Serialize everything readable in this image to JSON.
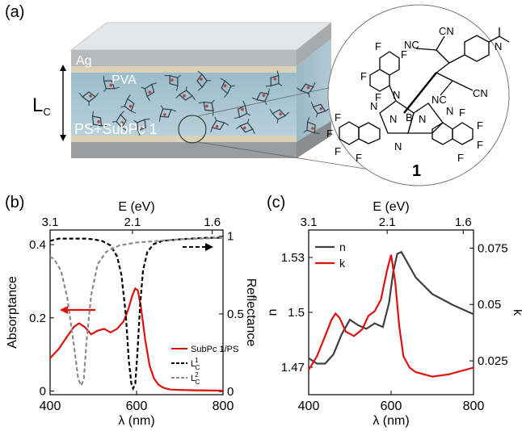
{
  "panel_a": {
    "label": "(a)",
    "layers": {
      "top": "Ag",
      "middle": "PVA",
      "cavity": "PS+SubPc 1"
    },
    "cavity_length": "L",
    "cavity_length_sub": "C",
    "molecule_label": "1",
    "atoms": {
      "F": "F",
      "N": "N",
      "B": "B",
      "CN": "CN",
      "NC": "NC"
    }
  },
  "panel_b": {
    "label": "(b)"
  },
  "panel_c": {
    "label": "(c)"
  },
  "chart_data": [
    {
      "type": "line",
      "panel": "(b)",
      "xlabel": "λ (nm)",
      "x2label": "E (eV)",
      "ylabel": "Absorptance",
      "y2label": "Reflectance",
      "xlim": [
        400,
        800
      ],
      "ylim": [
        -0.01,
        0.44
      ],
      "y2lim": [
        -0.02,
        1.04
      ],
      "xticks": [
        "400",
        "600",
        "800"
      ],
      "x2ticks": [
        "3.1",
        "2.1",
        "1.6"
      ],
      "yticks": [
        "0",
        "0.2",
        "0.4"
      ],
      "y2ticks": [
        "0",
        "0.5",
        "1"
      ],
      "legend": [
        "SubPc 1/PS",
        "L",
        "L"
      ],
      "legend_sub": [
        "",
        "C",
        "C"
      ],
      "legend_sup": [
        "",
        "1",
        "2"
      ],
      "colors": {
        "absorptance": "#e01010",
        "lc1": "#000000",
        "lc2": "#8c8c8c"
      },
      "series": [
        {
          "name": "SubPc 1/PS",
          "axis": "left",
          "x": [
            400,
            420,
            440,
            455,
            467,
            480,
            495,
            510,
            525,
            540,
            555,
            570,
            580,
            590,
            597,
            603,
            610,
            620,
            630,
            640,
            650,
            660,
            670,
            680,
            700,
            740,
            800
          ],
          "y": [
            0.09,
            0.115,
            0.15,
            0.175,
            0.185,
            0.175,
            0.155,
            0.165,
            0.17,
            0.16,
            0.17,
            0.19,
            0.22,
            0.26,
            0.28,
            0.275,
            0.23,
            0.14,
            0.07,
            0.035,
            0.018,
            0.01,
            0.006,
            0.004,
            0.003,
            0.002,
            0.001
          ]
        },
        {
          "name": "L",
          "axis": "right",
          "x": [
            400,
            420,
            440,
            460,
            480,
            500,
            520,
            540,
            555,
            565,
            575,
            582,
            588,
            592,
            597,
            602,
            608,
            615,
            625,
            640,
            660,
            700,
            760,
            800
          ],
          "y": [
            0.97,
            0.985,
            0.985,
            0.985,
            0.985,
            0.98,
            0.97,
            0.94,
            0.87,
            0.75,
            0.5,
            0.2,
            0.05,
            0.02,
            0.05,
            0.25,
            0.55,
            0.78,
            0.9,
            0.95,
            0.97,
            0.98,
            0.99,
            0.99
          ]
        },
        {
          "name": "L",
          "axis": "right",
          "x": [
            400,
            410,
            425,
            440,
            455,
            465,
            472,
            478,
            485,
            495,
            510,
            530,
            560,
            600,
            650,
            700,
            800
          ],
          "y": [
            0.87,
            0.85,
            0.78,
            0.6,
            0.3,
            0.08,
            0.04,
            0.08,
            0.35,
            0.62,
            0.82,
            0.9,
            0.94,
            0.96,
            0.97,
            0.98,
            0.99
          ]
        }
      ]
    },
    {
      "type": "line",
      "panel": "(c)",
      "xlabel": "λ (nm)",
      "x2label": "E (eV)",
      "ylabel": "n",
      "y2label": "k",
      "xlim": [
        400,
        800
      ],
      "ylim": [
        1.455,
        1.545
      ],
      "y2lim": [
        0.01,
        0.083
      ],
      "xticks": [
        "400",
        "600",
        "800"
      ],
      "x2ticks": [
        "3.1",
        "2.1",
        "1.6"
      ],
      "yticks": [
        "1.47",
        "1.5",
        "1.53"
      ],
      "y2ticks": [
        "0.025",
        "0.05",
        "0.075"
      ],
      "legend": [
        "n",
        "k"
      ],
      "colors": {
        "n": "#404040",
        "k": "#e01010"
      },
      "series": [
        {
          "name": "n",
          "axis": "left",
          "x": [
            400,
            420,
            440,
            460,
            480,
            500,
            520,
            540,
            560,
            580,
            595,
            605,
            615,
            625,
            640,
            660,
            700,
            750,
            800
          ],
          "y": [
            1.475,
            1.472,
            1.472,
            1.477,
            1.488,
            1.496,
            1.493,
            1.491,
            1.494,
            1.492,
            1.505,
            1.522,
            1.532,
            1.533,
            1.527,
            1.519,
            1.51,
            1.504,
            1.499
          ]
        },
        {
          "name": "k",
          "axis": "right",
          "x": [
            400,
            420,
            440,
            455,
            465,
            475,
            490,
            510,
            530,
            545,
            560,
            575,
            590,
            600,
            610,
            620,
            630,
            645,
            660,
            680,
            700,
            740,
            800
          ],
          "y": [
            0.021,
            0.027,
            0.036,
            0.043,
            0.046,
            0.044,
            0.038,
            0.036,
            0.039,
            0.045,
            0.047,
            0.052,
            0.065,
            0.072,
            0.06,
            0.04,
            0.027,
            0.022,
            0.02,
            0.019,
            0.018,
            0.019,
            0.022
          ]
        }
      ]
    }
  ]
}
